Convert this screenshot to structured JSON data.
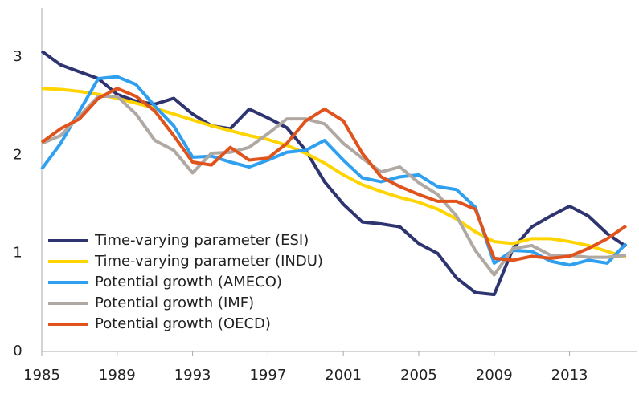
{
  "chart_data": {
    "type": "line",
    "x": [
      1985,
      1986,
      1987,
      1988,
      1989,
      1990,
      1991,
      1992,
      1993,
      1994,
      1995,
      1996,
      1997,
      1998,
      1999,
      2000,
      2001,
      2002,
      2003,
      2004,
      2005,
      2006,
      2007,
      2008,
      2009,
      2010,
      2011,
      2012,
      2013,
      2014,
      2015,
      2016
    ],
    "xlim": [
      1985,
      2016.6
    ],
    "xticks": [
      1985,
      1989,
      1993,
      1997,
      2001,
      2005,
      2009,
      2013
    ],
    "ylim": [
      0,
      3.5
    ],
    "yticks": [
      0,
      1,
      2,
      3
    ],
    "grid": false,
    "legend": "lower-left",
    "series": [
      {
        "name": "Time-varying parameter (ESI)",
        "color": "#2e3470",
        "values": [
          3.06,
          2.92,
          2.85,
          2.78,
          2.62,
          2.55,
          2.52,
          2.58,
          2.42,
          2.3,
          2.27,
          2.47,
          2.38,
          2.28,
          2.05,
          1.73,
          1.5,
          1.32,
          1.3,
          1.27,
          1.1,
          1.0,
          0.75,
          0.6,
          0.58,
          1.05,
          1.27,
          1.38,
          1.48,
          1.38,
          1.2,
          1.07
        ]
      },
      {
        "name": "Time-varying parameter (INDU)",
        "color": "#ffd400",
        "values": [
          2.68,
          2.67,
          2.65,
          2.62,
          2.58,
          2.53,
          2.48,
          2.42,
          2.36,
          2.3,
          2.25,
          2.2,
          2.16,
          2.1,
          2.02,
          1.92,
          1.8,
          1.7,
          1.63,
          1.57,
          1.52,
          1.45,
          1.35,
          1.22,
          1.12,
          1.1,
          1.15,
          1.15,
          1.12,
          1.08,
          1.02,
          0.96
        ]
      },
      {
        "name": "Potential growth (AMECO)",
        "color": "#2f9ff0",
        "values": [
          1.86,
          2.12,
          2.45,
          2.78,
          2.8,
          2.72,
          2.5,
          2.3,
          1.98,
          1.99,
          1.93,
          1.88,
          1.95,
          2.03,
          2.05,
          2.15,
          1.95,
          1.77,
          1.73,
          1.78,
          1.8,
          1.68,
          1.65,
          1.47,
          0.9,
          1.03,
          1.02,
          0.92,
          0.88,
          0.93,
          0.9,
          1.1
        ]
      },
      {
        "name": "Potential growth (IMF)",
        "color": "#b0a9a3",
        "values": [
          2.12,
          2.2,
          2.4,
          2.6,
          2.6,
          2.42,
          2.15,
          2.05,
          1.82,
          2.02,
          2.03,
          2.08,
          2.22,
          2.37,
          2.37,
          2.32,
          2.12,
          1.97,
          1.83,
          1.88,
          1.72,
          1.6,
          1.38,
          1.03,
          0.78,
          1.05,
          1.08,
          0.98,
          0.98,
          0.96,
          0.96,
          0.98
        ]
      },
      {
        "name": "Potential growth (OECD)",
        "color": "#e0531c",
        "values": [
          2.13,
          2.27,
          2.37,
          2.58,
          2.68,
          2.6,
          2.45,
          2.2,
          1.93,
          1.9,
          2.08,
          1.95,
          1.97,
          2.12,
          2.35,
          2.47,
          2.35,
          2.02,
          1.78,
          1.68,
          1.6,
          1.53,
          1.53,
          1.45,
          0.95,
          0.93,
          0.97,
          0.95,
          0.97,
          1.05,
          1.15,
          1.28
        ]
      }
    ]
  }
}
